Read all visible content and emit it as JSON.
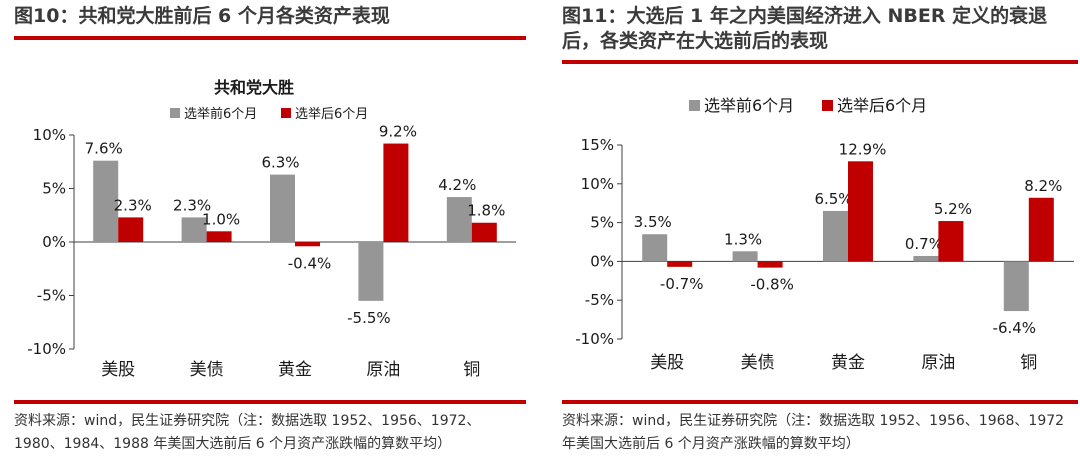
{
  "left": {
    "figure_title": "图10：共和党大胜前后 6 个月各类资产表现",
    "source": "资料来源：wind，民生证券研究院（注：数据选取 1952、1956、1972、1980、1984、1988 年美国大选前后 6 个月资产涨跌幅的算数平均）"
  },
  "right": {
    "figure_title": "图11：大选后 1 年之内美国经济进入 NBER 定义的衰退后，各类资产在大选前后的表现",
    "source": "资料来源：wind，民生证券研究院（注：数据选取 1952、1956、1968、1972 年美国大选前后 6 个月资产涨跌幅的算数平均）"
  },
  "colors": {
    "before": "#969696",
    "after": "#c00000",
    "accent_rule": "#c00000"
  },
  "chart_data": [
    {
      "type": "bar",
      "title": "共和党大胜",
      "categories": [
        "美股",
        "美债",
        "黄金",
        "原油",
        "铜"
      ],
      "series": [
        {
          "name": "选举前6个月",
          "values": [
            7.6,
            2.3,
            6.3,
            -5.5,
            4.2
          ],
          "labels": [
            "7.6%",
            "2.3%",
            "6.3%",
            "-5.5%",
            "4.2%"
          ]
        },
        {
          "name": "选举后6个月",
          "values": [
            2.3,
            1.0,
            -0.4,
            9.2,
            1.8
          ],
          "labels": [
            "2.3%",
            "1.0%",
            "-0.4%",
            "9.2%",
            "1.8%"
          ]
        }
      ],
      "ylim": [
        -10,
        10
      ],
      "yticks": [
        10,
        5,
        0,
        -5,
        -10
      ],
      "ytick_labels": [
        "10%",
        "5%",
        "0%",
        "-5%",
        "-10%"
      ],
      "legend": "top",
      "grid": false
    },
    {
      "type": "bar",
      "title": "",
      "categories": [
        "美股",
        "美债",
        "黄金",
        "原油",
        "铜"
      ],
      "series": [
        {
          "name": "选举前6个月",
          "values": [
            3.5,
            1.3,
            6.5,
            0.7,
            -6.4
          ],
          "labels": [
            "3.5%",
            "1.3%",
            "6.5%",
            "0.7%",
            "-6.4%"
          ]
        },
        {
          "name": "选举后6个月",
          "values": [
            -0.7,
            -0.8,
            12.9,
            5.2,
            8.2
          ],
          "labels": [
            "-0.7%",
            "-0.8%",
            "12.9%",
            "5.2%",
            "8.2%"
          ]
        }
      ],
      "ylim": [
        -10,
        15
      ],
      "yticks": [
        15,
        10,
        5,
        0,
        -5,
        -10
      ],
      "ytick_labels": [
        "15%",
        "10%",
        "5%",
        "0%",
        "-5%",
        "-10%"
      ],
      "legend": "top",
      "grid": false
    }
  ]
}
